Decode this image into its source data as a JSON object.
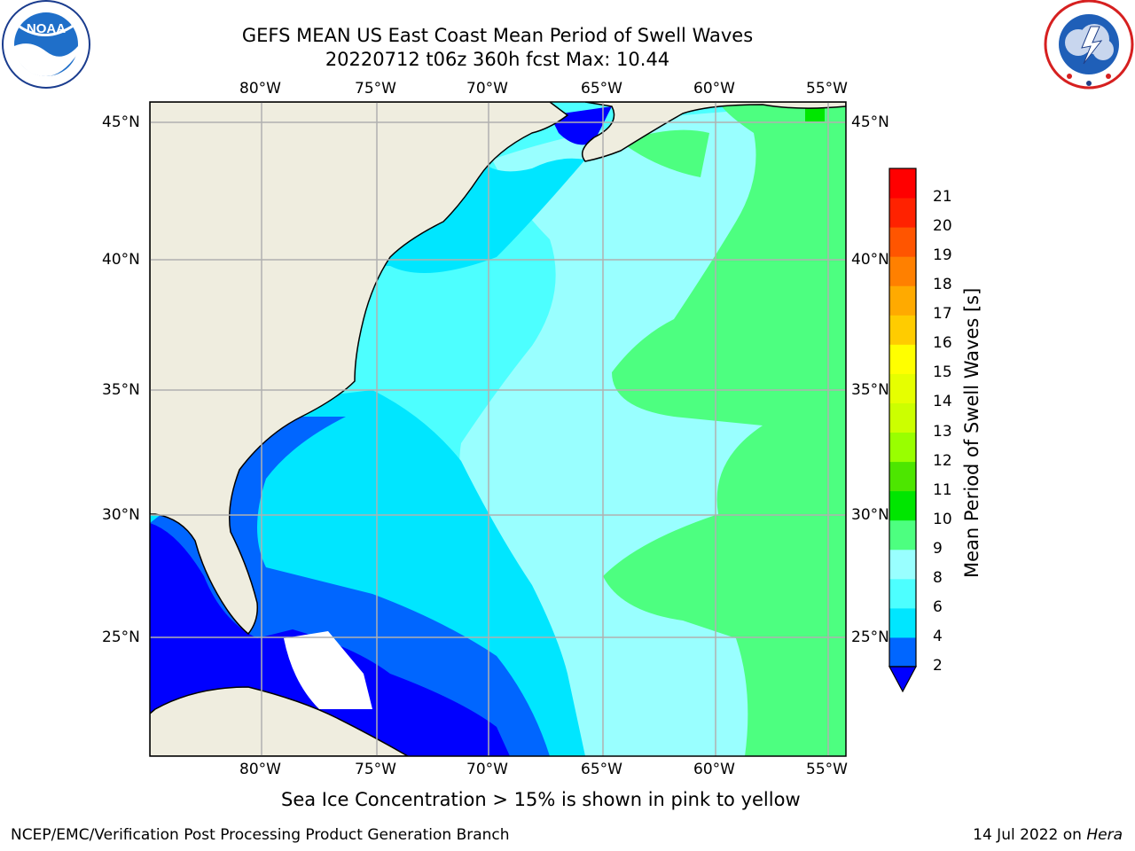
{
  "title": {
    "line1": "GEFS MEAN US East Coast Mean Period of Swell Waves",
    "line2": "20220712 t06z 360h fcst   Max: 10.44"
  },
  "logos": {
    "left": {
      "icon": "noaa-logo",
      "text": "NOAA",
      "ring_text": "NATIONAL OCEANIC AND ATMOSPHERIC ADMINISTRATION · U.S. DEPARTMENT OF COMMERCE"
    },
    "right": {
      "icon": "nws-logo",
      "ring_text": "NATIONAL WEATHER SERVICE"
    }
  },
  "map": {
    "lon_labels": [
      "80°W",
      "75°W",
      "70°W",
      "65°W",
      "60°W",
      "55°W"
    ],
    "lat_labels": [
      "45°N",
      "40°N",
      "35°N",
      "30°N",
      "25°N"
    ],
    "land_color": "#efeddf",
    "gridline_color": "#b0b0b0"
  },
  "colorbar": {
    "title": "Mean Period of Swell Waves [s]",
    "levels": [
      "2",
      "4",
      "6",
      "8",
      "9",
      "10",
      "11",
      "12",
      "13",
      "14",
      "15",
      "16",
      "17",
      "18",
      "19",
      "20",
      "21"
    ],
    "colors": [
      "#0066ff",
      "#00e6ff",
      "#4dffff",
      "#99ffff",
      "#4dff80",
      "#00e600",
      "#4de600",
      "#99ff00",
      "#ccff00",
      "#e6ff00",
      "#ffff00",
      "#ffcc00",
      "#ffaa00",
      "#ff8000",
      "#ff5500",
      "#ff2200",
      "#ff0000"
    ],
    "under_color": "#0000ff"
  },
  "note": "Sea Ice Concentration > 15% is shown in pink to yellow",
  "footer": {
    "left": "NCEP/EMC/Verification Post Processing Product Generation Branch",
    "right_date": "14 Jul 2022 on ",
    "right_machine": "Hera"
  }
}
